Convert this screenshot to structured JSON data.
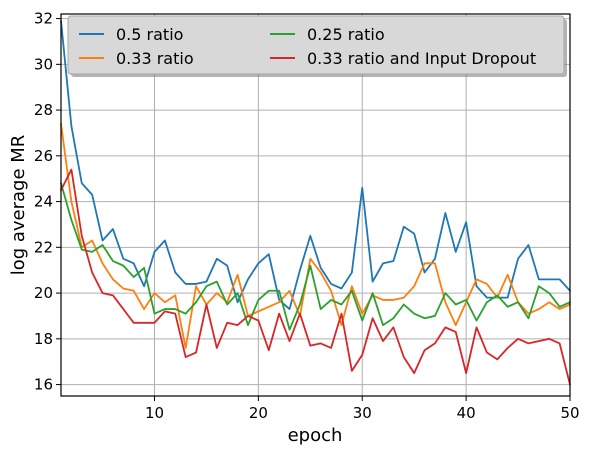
{
  "chart_data": {
    "type": "line",
    "xlabel": "epoch",
    "ylabel": "log average MR",
    "xlim": [
      1,
      50
    ],
    "ylim": [
      15.5,
      32.2
    ],
    "xticks": [
      10,
      20,
      30,
      40,
      50
    ],
    "yticks": [
      16,
      18,
      20,
      22,
      24,
      26,
      28,
      30,
      32
    ],
    "grid": true,
    "legend_position": "top",
    "x": [
      1,
      2,
      3,
      4,
      5,
      6,
      7,
      8,
      9,
      10,
      11,
      12,
      13,
      14,
      15,
      16,
      17,
      18,
      19,
      20,
      21,
      22,
      23,
      24,
      25,
      26,
      27,
      28,
      29,
      30,
      31,
      32,
      33,
      34,
      35,
      36,
      37,
      38,
      39,
      40,
      41,
      42,
      43,
      44,
      45,
      46,
      47,
      48,
      49,
      50
    ],
    "series": [
      {
        "name": "0.5 ratio",
        "color": "#1f77b4",
        "values": [
          31.9,
          27.3,
          24.8,
          24.3,
          22.3,
          22.8,
          21.5,
          21.3,
          20.3,
          21.8,
          22.3,
          20.9,
          20.4,
          20.4,
          20.5,
          21.5,
          21.2,
          19.6,
          20.6,
          21.3,
          21.7,
          19.7,
          19.3,
          21.0,
          22.5,
          21.1,
          20.4,
          20.2,
          20.9,
          24.6,
          20.5,
          21.3,
          21.4,
          22.9,
          22.6,
          20.9,
          21.5,
          23.5,
          21.8,
          23.1,
          20.3,
          19.8,
          19.8,
          19.8,
          21.5,
          22.1,
          20.6,
          20.6,
          20.6,
          20.1
        ]
      },
      {
        "name": "0.33 ratio",
        "color": "#ff7f0e",
        "values": [
          27.4,
          24.0,
          22.0,
          22.3,
          21.3,
          20.6,
          20.2,
          20.1,
          19.3,
          20.0,
          19.6,
          19.9,
          17.6,
          20.3,
          19.5,
          20.0,
          19.6,
          20.8,
          19.0,
          19.2,
          19.4,
          19.6,
          20.1,
          19.0,
          21.5,
          20.9,
          20.1,
          18.6,
          20.3,
          19.1,
          19.9,
          19.7,
          19.7,
          19.8,
          20.3,
          21.3,
          21.3,
          19.6,
          18.6,
          19.6,
          20.6,
          20.4,
          19.8,
          20.8,
          19.6,
          19.1,
          19.3,
          19.6,
          19.3,
          19.5
        ]
      },
      {
        "name": "0.25 ratio",
        "color": "#2ca02c",
        "values": [
          24.8,
          23.2,
          21.9,
          21.8,
          22.1,
          21.4,
          21.2,
          20.7,
          21.1,
          19.1,
          19.3,
          19.3,
          19.1,
          19.6,
          20.3,
          20.5,
          19.5,
          20.0,
          18.6,
          19.7,
          20.1,
          20.1,
          18.4,
          19.5,
          21.2,
          19.3,
          19.7,
          19.5,
          20.1,
          18.8,
          20.0,
          18.6,
          18.9,
          19.5,
          19.1,
          18.9,
          19.0,
          20.0,
          19.5,
          19.7,
          18.8,
          19.6,
          19.9,
          19.4,
          19.6,
          18.9,
          20.3,
          20.0,
          19.4,
          19.6
        ]
      },
      {
        "name": "0.33 ratio and Input Dropout",
        "color": "#d62728",
        "values": [
          24.5,
          25.4,
          22.5,
          20.9,
          20.0,
          19.9,
          19.3,
          18.7,
          18.7,
          18.7,
          19.2,
          19.1,
          17.2,
          17.4,
          19.5,
          17.6,
          18.7,
          18.6,
          19.0,
          18.8,
          17.5,
          19.1,
          17.9,
          19.1,
          17.7,
          17.8,
          17.6,
          19.1,
          16.6,
          17.3,
          18.9,
          17.9,
          18.5,
          17.2,
          16.5,
          17.5,
          17.8,
          18.5,
          18.3,
          16.5,
          18.5,
          17.4,
          17.1,
          17.6,
          18.0,
          17.8,
          17.9,
          18.0,
          17.8,
          16.0
        ]
      }
    ]
  }
}
